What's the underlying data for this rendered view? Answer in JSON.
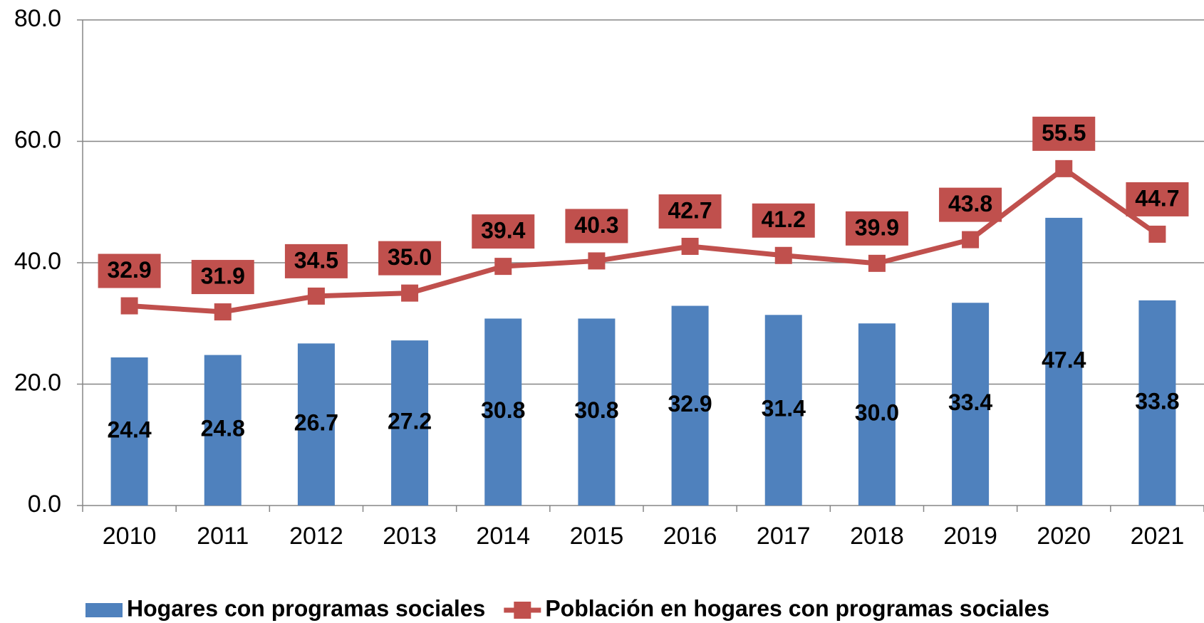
{
  "chart_data": {
    "type": "combo",
    "categories": [
      "2010",
      "2011",
      "2012",
      "2013",
      "2014",
      "2015",
      "2016",
      "2017",
      "2018",
      "2019",
      "2020",
      "2021"
    ],
    "series": [
      {
        "name": "Hogares con programas sociales",
        "type": "bar",
        "color": "#4f81bd",
        "values": [
          24.4,
          24.8,
          26.7,
          27.2,
          30.8,
          30.8,
          32.9,
          31.4,
          30.0,
          33.4,
          47.4,
          33.8
        ],
        "value_labels": [
          "24.4",
          "24.8",
          "26.7",
          "27.2",
          "30.8",
          "30.8",
          "32.9",
          "31.4",
          "30.0",
          "33.4",
          "47.4",
          "33.8"
        ]
      },
      {
        "name": "Población en hogares con programas sociales",
        "type": "line",
        "color": "#c0504d",
        "values": [
          32.9,
          31.9,
          34.5,
          35.0,
          39.4,
          40.3,
          42.7,
          41.2,
          39.9,
          43.8,
          55.5,
          44.7
        ],
        "value_labels": [
          "32.9",
          "31.9",
          "34.5",
          "35.0",
          "39.4",
          "40.3",
          "42.7",
          "41.2",
          "39.9",
          "43.8",
          "55.5",
          "44.7"
        ]
      }
    ],
    "ylim": [
      0,
      80
    ],
    "yticks": [
      {
        "value": 0,
        "label": "0.0"
      },
      {
        "value": 20,
        "label": "20.0"
      },
      {
        "value": 40,
        "label": "40.0"
      },
      {
        "value": 60,
        "label": "60.0"
      },
      {
        "value": 80,
        "label": "80.0"
      }
    ],
    "grid": true,
    "legend": "bottom"
  }
}
